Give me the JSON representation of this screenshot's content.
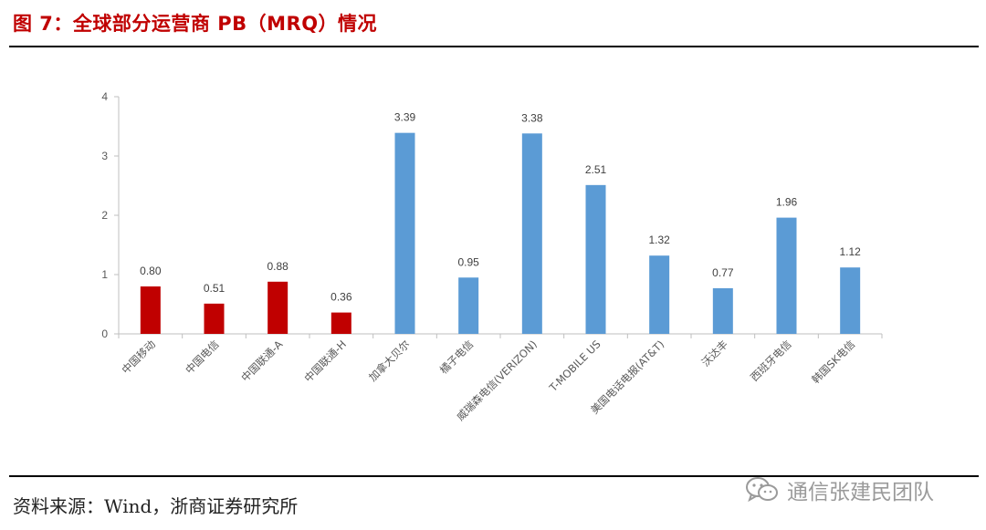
{
  "header": {
    "title": "图 7：全球部分运营商 PB（MRQ）情况"
  },
  "footer": {
    "source": "资料来源：Wind，浙商证券研究所"
  },
  "watermark": {
    "text": "通信张建民团队",
    "icon": "wechat-icon"
  },
  "colors": {
    "highlight": "#c00000",
    "bar": "#5b9bd5",
    "axis": "#bfbfbf",
    "text": "#595959"
  },
  "chart_data": {
    "type": "bar",
    "title": "",
    "xlabel": "",
    "ylabel": "",
    "ylim": [
      0,
      4
    ],
    "yticks": [
      0,
      1,
      2,
      3,
      4
    ],
    "grid": false,
    "legend": "none",
    "categories": [
      "中国移动",
      "中国电信",
      "中国联通-A",
      "中国联通-H",
      "加拿大贝尔",
      "橘子电信",
      "威瑞森电信(VERIZON)",
      "T-MOBILE US",
      "美国电话电报(AT&T)",
      "沃达丰",
      "西班牙电信",
      "韩国SK电信"
    ],
    "values": [
      0.8,
      0.51,
      0.88,
      0.36,
      3.39,
      0.95,
      3.38,
      2.51,
      1.32,
      0.77,
      1.96,
      1.12
    ],
    "data_labels": [
      "0.80",
      "0.51",
      "0.88",
      "0.36",
      "3.39",
      "0.95",
      "3.38",
      "2.51",
      "1.32",
      "0.77",
      "1.96",
      "1.12"
    ],
    "bar_colors": [
      "#c00000",
      "#c00000",
      "#c00000",
      "#c00000",
      "#5b9bd5",
      "#5b9bd5",
      "#5b9bd5",
      "#5b9bd5",
      "#5b9bd5",
      "#5b9bd5",
      "#5b9bd5",
      "#5b9bd5"
    ]
  }
}
